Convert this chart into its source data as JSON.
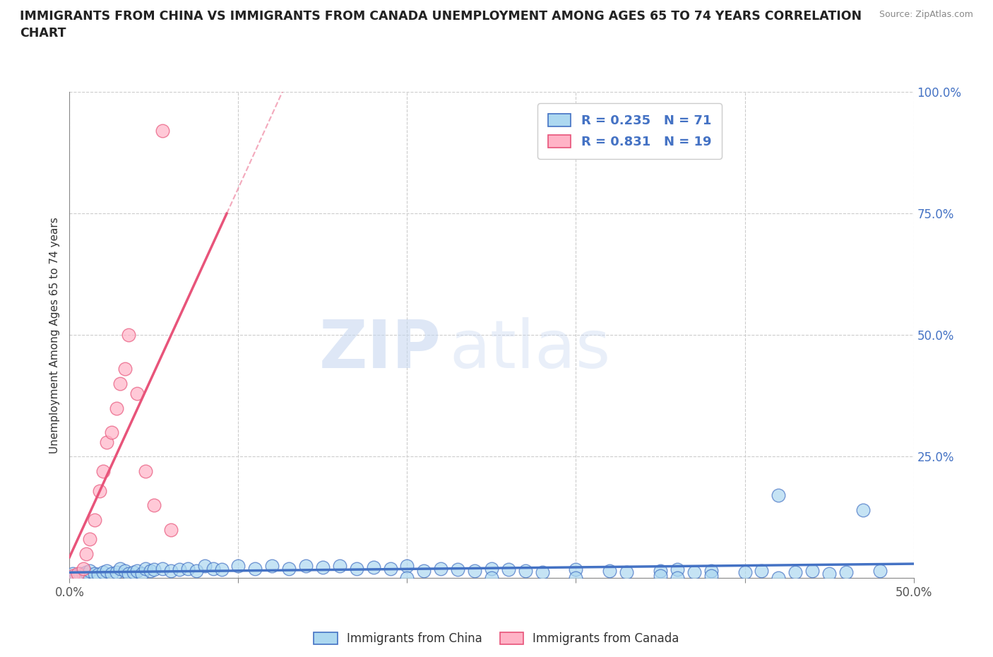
{
  "title": "IMMIGRANTS FROM CHINA VS IMMIGRANTS FROM CANADA UNEMPLOYMENT AMONG AGES 65 TO 74 YEARS CORRELATION\nCHART",
  "source_text": "Source: ZipAtlas.com",
  "ylabel": "Unemployment Among Ages 65 to 74 years",
  "xlim": [
    0.0,
    0.5
  ],
  "ylim": [
    0.0,
    1.0
  ],
  "xticks": [
    0.0,
    0.1,
    0.2,
    0.3,
    0.4,
    0.5
  ],
  "yticks": [
    0.0,
    0.25,
    0.5,
    0.75,
    1.0
  ],
  "china_color": "#ADD8F0",
  "china_edge_color": "#4472C4",
  "canada_color": "#FFB3C6",
  "canada_edge_color": "#E8547A",
  "trendline_china_color": "#4472C4",
  "trendline_canada_color": "#E8547A",
  "china_R": 0.235,
  "china_N": 71,
  "canada_R": 0.831,
  "canada_N": 19,
  "watermark_zip": "ZIP",
  "watermark_atlas": "atlas",
  "background_color": "#FFFFFF",
  "grid_color": "#CCCCCC",
  "ytick_color": "#4472C4",
  "legend_label_color": "#4472C4",
  "china_x": [
    0.002,
    0.004,
    0.006,
    0.008,
    0.01,
    0.012,
    0.015,
    0.017,
    0.02,
    0.022,
    0.025,
    0.028,
    0.03,
    0.033,
    0.035,
    0.038,
    0.04,
    0.043,
    0.045,
    0.048,
    0.05,
    0.055,
    0.06,
    0.065,
    0.07,
    0.075,
    0.08,
    0.085,
    0.09,
    0.1,
    0.11,
    0.12,
    0.13,
    0.14,
    0.15,
    0.16,
    0.17,
    0.18,
    0.19,
    0.2,
    0.21,
    0.22,
    0.23,
    0.24,
    0.25,
    0.26,
    0.27,
    0.28,
    0.3,
    0.32,
    0.33,
    0.35,
    0.36,
    0.37,
    0.38,
    0.4,
    0.41,
    0.42,
    0.43,
    0.44,
    0.45,
    0.46,
    0.47,
    0.48,
    0.2,
    0.25,
    0.3,
    0.35,
    0.36,
    0.38,
    0.42
  ],
  "china_y": [
    0.01,
    0.005,
    0.01,
    0.008,
    0.012,
    0.015,
    0.01,
    0.008,
    0.012,
    0.015,
    0.01,
    0.012,
    0.02,
    0.015,
    0.01,
    0.012,
    0.015,
    0.01,
    0.02,
    0.015,
    0.018,
    0.02,
    0.015,
    0.018,
    0.02,
    0.015,
    0.025,
    0.02,
    0.018,
    0.025,
    0.02,
    0.025,
    0.02,
    0.025,
    0.022,
    0.025,
    0.02,
    0.022,
    0.02,
    0.025,
    0.015,
    0.02,
    0.018,
    0.015,
    0.02,
    0.018,
    0.015,
    0.012,
    0.018,
    0.015,
    0.012,
    0.015,
    0.018,
    0.012,
    0.015,
    0.012,
    0.015,
    0.17,
    0.012,
    0.015,
    0.01,
    0.012,
    0.14,
    0.015,
    0.0,
    0.0,
    0.0,
    0.005,
    0.0,
    0.005,
    0.0
  ],
  "canada_x": [
    0.002,
    0.005,
    0.008,
    0.01,
    0.012,
    0.015,
    0.018,
    0.02,
    0.022,
    0.025,
    0.028,
    0.03,
    0.033,
    0.035,
    0.04,
    0.045,
    0.05,
    0.055,
    0.06
  ],
  "canada_y": [
    0.005,
    0.01,
    0.02,
    0.05,
    0.08,
    0.12,
    0.18,
    0.22,
    0.28,
    0.3,
    0.35,
    0.4,
    0.43,
    0.5,
    0.38,
    0.22,
    0.15,
    0.92,
    0.1
  ]
}
